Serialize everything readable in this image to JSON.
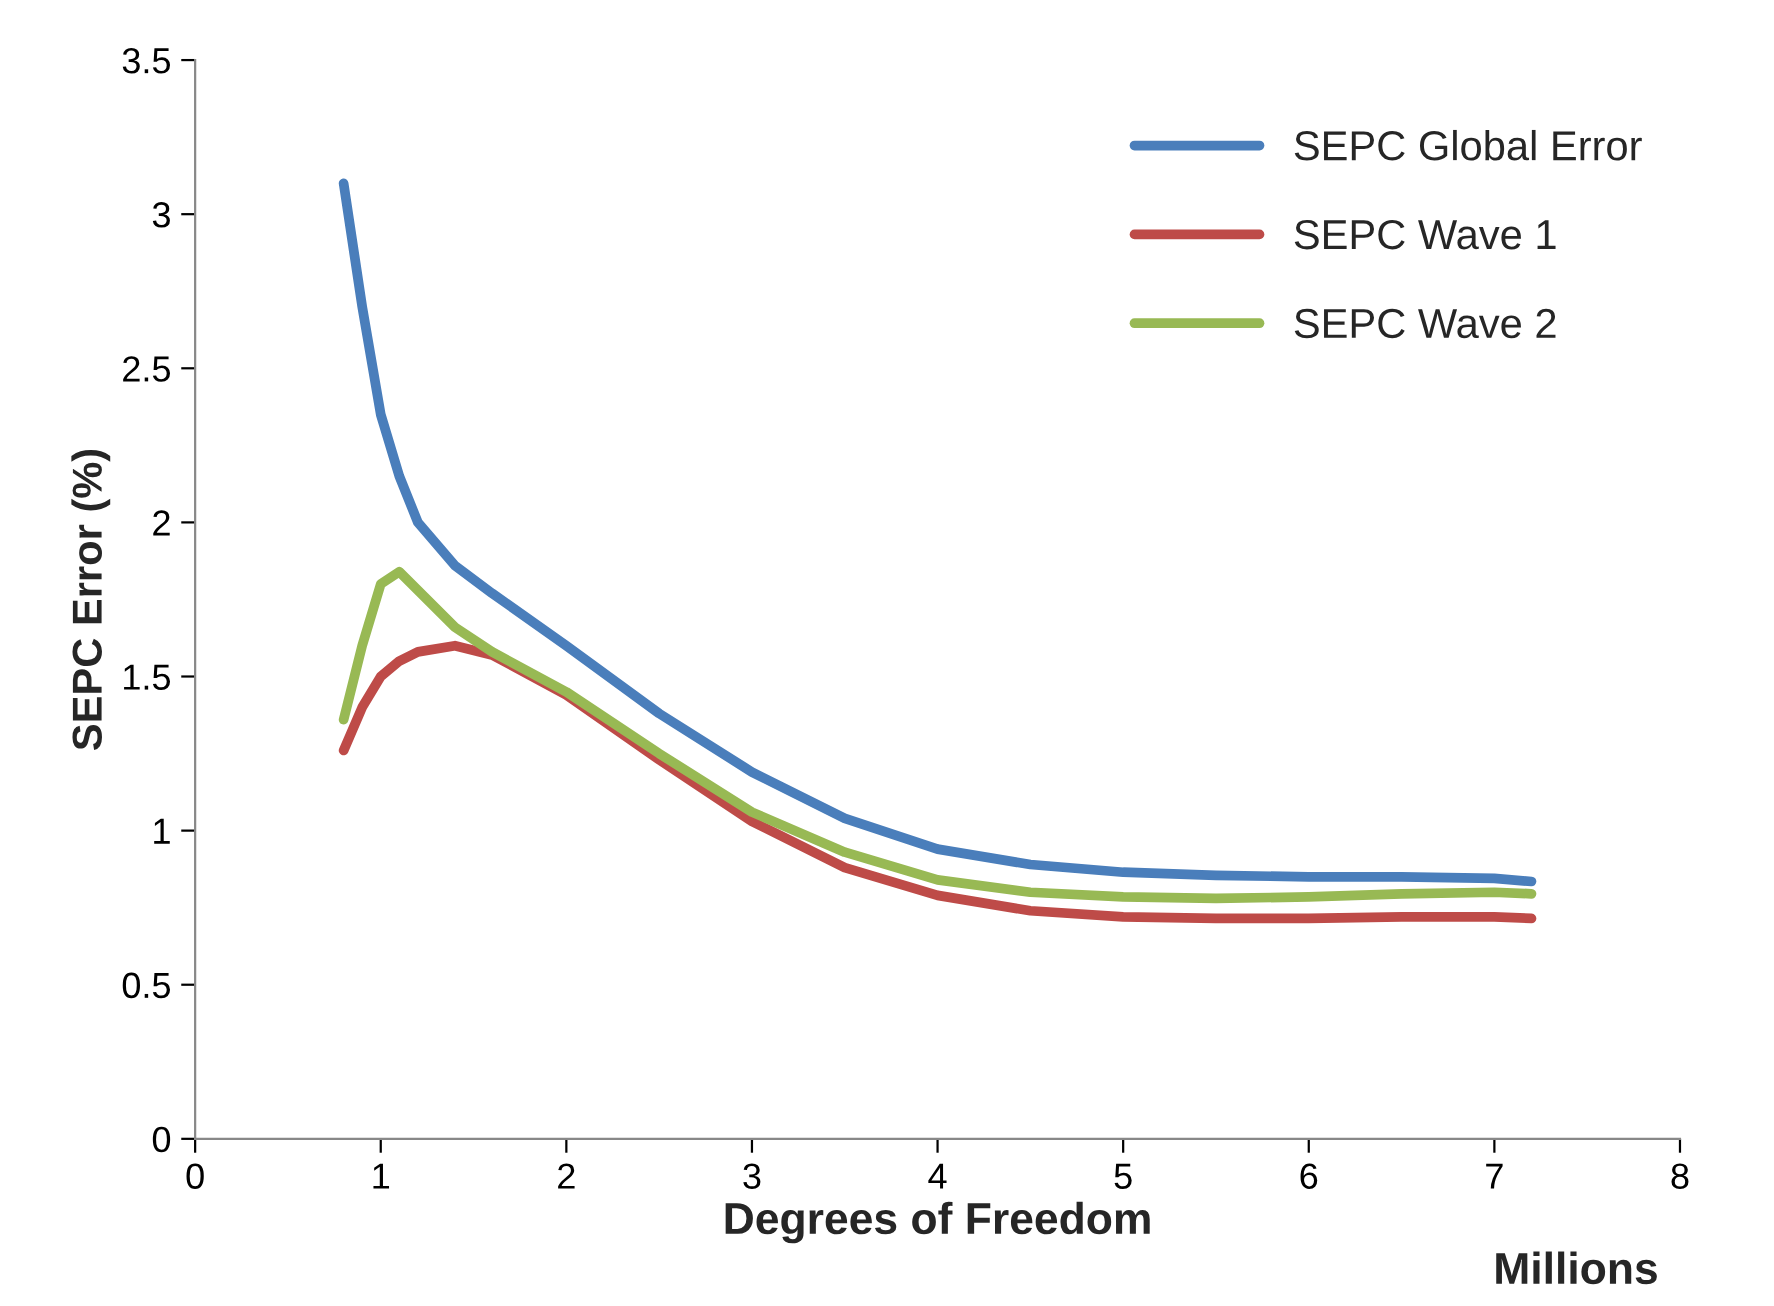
{
  "chart_data": {
    "type": "line",
    "xlabel": "Degrees of Freedom",
    "ylabel": "SEPC Error (%)",
    "annotations": [
      "Millions"
    ],
    "x": [
      0.8,
      0.9,
      1.0,
      1.1,
      1.2,
      1.4,
      1.6,
      2,
      2.5,
      3,
      3.5,
      4,
      4.5,
      5,
      5.5,
      6,
      6.5,
      7,
      7.2
    ],
    "series": [
      {
        "name": "SEPC Global Error",
        "color": "#4a7ebb",
        "values": [
          3.1,
          2.7,
          2.35,
          2.15,
          2.0,
          1.86,
          1.77,
          1.6,
          1.38,
          1.19,
          1.04,
          0.94,
          0.89,
          0.865,
          0.855,
          0.85,
          0.85,
          0.845,
          0.835
        ]
      },
      {
        "name": "SEPC Wave 1",
        "color": "#be4b48",
        "values": [
          1.26,
          1.4,
          1.5,
          1.55,
          1.58,
          1.6,
          1.57,
          1.44,
          1.23,
          1.03,
          0.88,
          0.79,
          0.74,
          0.72,
          0.715,
          0.715,
          0.72,
          0.72,
          0.715
        ]
      },
      {
        "name": "SEPC Wave 2",
        "color": "#98b954",
        "values": [
          1.36,
          1.6,
          1.8,
          1.84,
          1.78,
          1.66,
          1.58,
          1.45,
          1.25,
          1.06,
          0.93,
          0.84,
          0.8,
          0.785,
          0.78,
          0.785,
          0.795,
          0.8,
          0.795
        ]
      }
    ],
    "xlim": [
      0,
      8
    ],
    "xticks": [
      0,
      1,
      2,
      3,
      4,
      5,
      6,
      7,
      8
    ],
    "ylim": [
      0,
      3.5
    ],
    "yticks": [
      0,
      0.5,
      1,
      1.5,
      2,
      2.5,
      3,
      3.5
    ],
    "grid": false,
    "legend": "top right",
    "marker": "none",
    "line_style": "solid"
  }
}
